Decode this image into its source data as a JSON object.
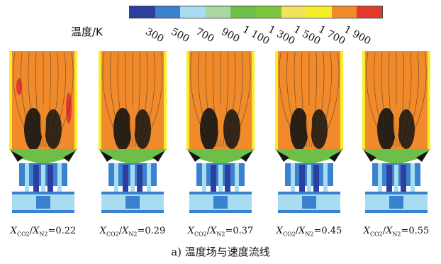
{
  "legend": {
    "label": "温度/K",
    "colors": [
      "#2c3e9e",
      "#3a82cf",
      "#a8dcf0",
      "#a8d8a0",
      "#6cc04a",
      "#7cc53c",
      "#f2e45a",
      "#f7ee2a",
      "#f08a2a",
      "#e23a2a"
    ],
    "ticks": [
      "300",
      "500",
      "700",
      "900",
      "1 100",
      "1 300",
      "1 500",
      "1 700",
      "1 900"
    ]
  },
  "panels": [
    {
      "symbol_x": "X",
      "sub_a": "CO",
      "sub_a2": "2",
      "sub_b": "N",
      "sub_b2": "2",
      "value": "=0.22"
    },
    {
      "symbol_x": "X",
      "sub_a": "CO",
      "sub_a2": "2",
      "sub_b": "N",
      "sub_b2": "2",
      "value": "=0.29"
    },
    {
      "symbol_x": "X",
      "sub_a": "CO",
      "sub_a2": "2",
      "sub_b": "N",
      "sub_b2": "2",
      "value": "=0.37"
    },
    {
      "symbol_x": "X",
      "sub_a": "CO",
      "sub_a2": "2",
      "sub_b": "N",
      "sub_b2": "2",
      "value": "=0.45"
    },
    {
      "symbol_x": "X",
      "sub_a": "CO",
      "sub_a2": "2",
      "sub_b": "N",
      "sub_b2": "2",
      "value": "=0.55"
    }
  ],
  "figure_caption": "a) 温度场与速度流线"
}
